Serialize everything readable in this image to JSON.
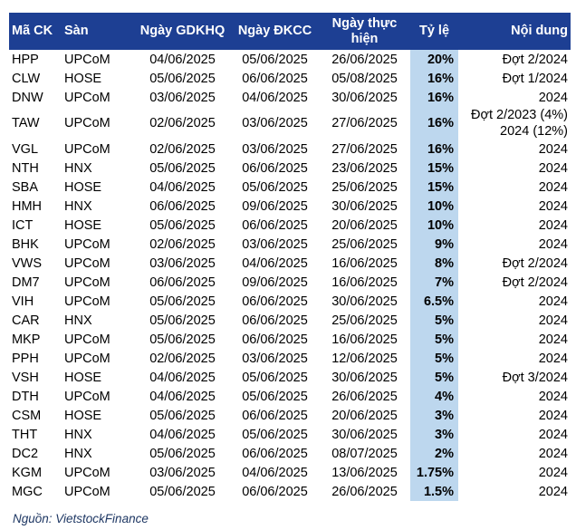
{
  "table": {
    "header": [
      "Mã CK",
      "Sàn",
      "Ngày GDKHQ",
      "Ngày ĐKCC",
      "Ngày thực hiện",
      "Tỷ lệ",
      "Nội dung"
    ],
    "rows": [
      [
        "HPP",
        "UPCoM",
        "04/06/2025",
        "05/06/2025",
        "26/06/2025",
        "20%",
        "Đợt 2/2024"
      ],
      [
        "CLW",
        "HOSE",
        "05/06/2025",
        "06/06/2025",
        "05/08/2025",
        "16%",
        "Đợt 1/2024"
      ],
      [
        "DNW",
        "UPCoM",
        "03/06/2025",
        "04/06/2025",
        "30/06/2025",
        "16%",
        "2024"
      ],
      [
        "TAW",
        "UPCoM",
        "02/06/2025",
        "03/06/2025",
        "27/06/2025",
        "16%",
        [
          "Đợt 2/2023 (4%)",
          "2024 (12%)"
        ]
      ],
      [
        "VGL",
        "UPCoM",
        "02/06/2025",
        "03/06/2025",
        "27/06/2025",
        "16%",
        "2024"
      ],
      [
        "NTH",
        "HNX",
        "05/06/2025",
        "06/06/2025",
        "23/06/2025",
        "15%",
        "2024"
      ],
      [
        "SBA",
        "HOSE",
        "04/06/2025",
        "05/06/2025",
        "25/06/2025",
        "15%",
        "2024"
      ],
      [
        "HMH",
        "HNX",
        "06/06/2025",
        "09/06/2025",
        "30/06/2025",
        "10%",
        "2024"
      ],
      [
        "ICT",
        "HOSE",
        "05/06/2025",
        "06/06/2025",
        "20/06/2025",
        "10%",
        "2024"
      ],
      [
        "BHK",
        "UPCoM",
        "02/06/2025",
        "03/06/2025",
        "25/06/2025",
        "9%",
        "2024"
      ],
      [
        "VWS",
        "UPCoM",
        "03/06/2025",
        "04/06/2025",
        "16/06/2025",
        "8%",
        "Đợt 2/2024"
      ],
      [
        "DM7",
        "UPCoM",
        "06/06/2025",
        "09/06/2025",
        "16/06/2025",
        "7%",
        "Đợt 2/2024"
      ],
      [
        "VIH",
        "UPCoM",
        "05/06/2025",
        "06/06/2025",
        "30/06/2025",
        "6.5%",
        "2024"
      ],
      [
        "CAR",
        "HNX",
        "05/06/2025",
        "06/06/2025",
        "25/06/2025",
        "5%",
        "2024"
      ],
      [
        "MKP",
        "UPCoM",
        "05/06/2025",
        "06/06/2025",
        "16/06/2025",
        "5%",
        "2024"
      ],
      [
        "PPH",
        "UPCoM",
        "02/06/2025",
        "03/06/2025",
        "12/06/2025",
        "5%",
        "2024"
      ],
      [
        "VSH",
        "HOSE",
        "04/06/2025",
        "05/06/2025",
        "30/06/2025",
        "5%",
        "Đợt 3/2024"
      ],
      [
        "DTH",
        "UPCoM",
        "04/06/2025",
        "05/06/2025",
        "26/06/2025",
        "4%",
        "2024"
      ],
      [
        "CSM",
        "HOSE",
        "05/06/2025",
        "06/06/2025",
        "20/06/2025",
        "3%",
        "2024"
      ],
      [
        "THT",
        "HNX",
        "04/06/2025",
        "05/06/2025",
        "30/06/2025",
        "3%",
        "2024"
      ],
      [
        "DC2",
        "HNX",
        "05/06/2025",
        "06/06/2025",
        "08/07/2025",
        "2%",
        "2024"
      ],
      [
        "KGM",
        "UPCoM",
        "03/06/2025",
        "04/06/2025",
        "13/06/2025",
        "1.75%",
        "2024"
      ],
      [
        "MGC",
        "UPCoM",
        "05/06/2025",
        "06/06/2025",
        "26/06/2025",
        "1.5%",
        "2024"
      ]
    ]
  },
  "source": "Nguồn: VietstockFinance"
}
